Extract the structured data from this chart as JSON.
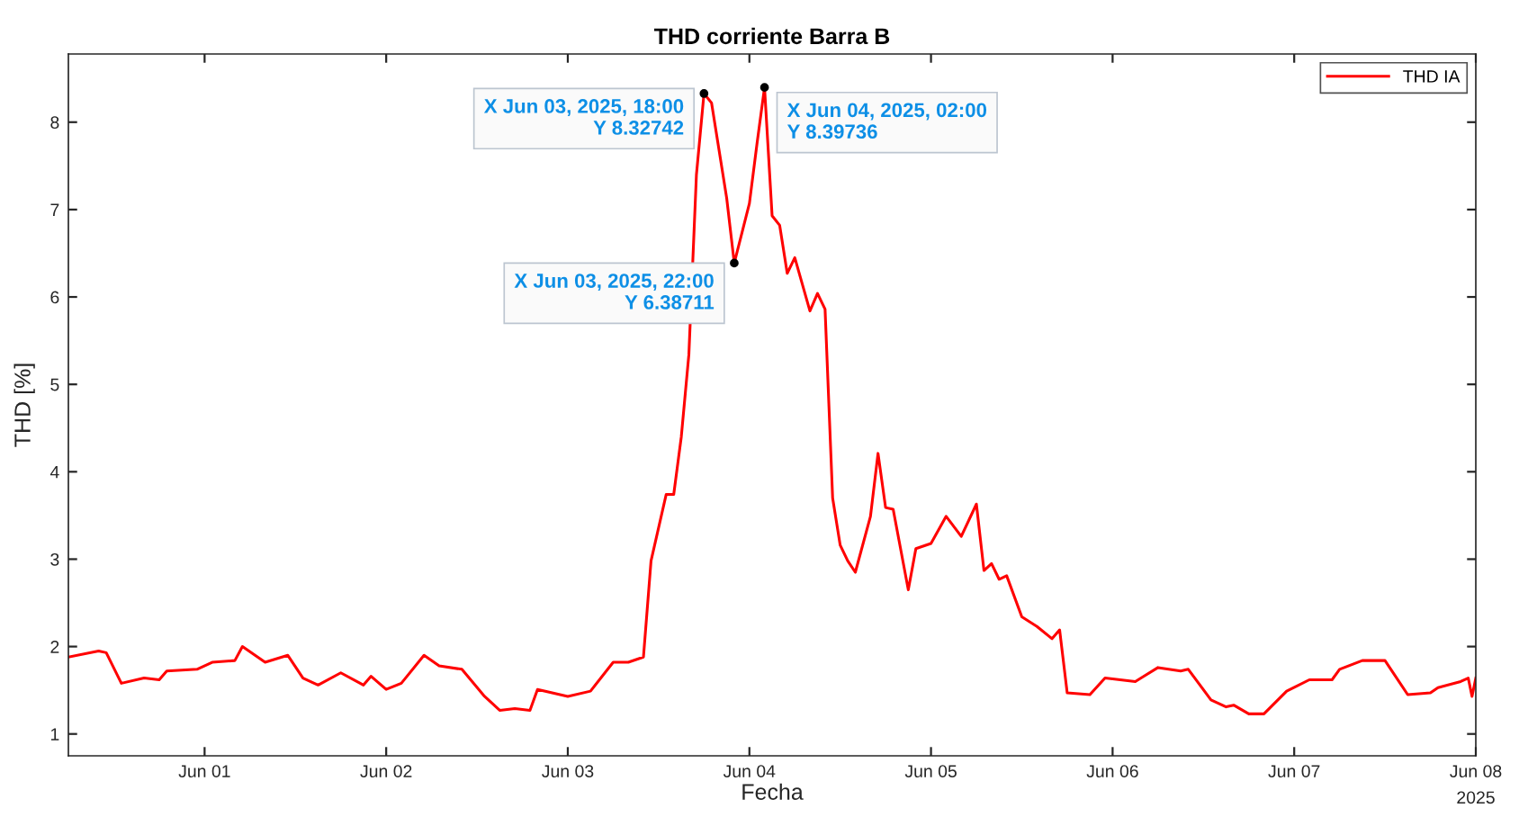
{
  "chart_data": {
    "type": "line",
    "title": "THD corriente Barra B",
    "xlabel": "Fecha",
    "ylabel": "THD [%]",
    "x": [
      "2025-05-31T06:00",
      "2025-05-31T10:00",
      "2025-05-31T11:00",
      "2025-05-31T13:00",
      "2025-05-31T16:00",
      "2025-05-31T18:00",
      "2025-05-31T19:00",
      "2025-05-31T23:00",
      "2025-06-01T01:00",
      "2025-06-01T04:00",
      "2025-06-01T05:00",
      "2025-06-01T08:00",
      "2025-06-01T11:00",
      "2025-06-01T13:00",
      "2025-06-01T15:00",
      "2025-06-01T18:00",
      "2025-06-01T21:00",
      "2025-06-01T22:00",
      "2025-06-02T00:00",
      "2025-06-02T02:00",
      "2025-06-02T05:00",
      "2025-06-02T07:00",
      "2025-06-02T10:00",
      "2025-06-02T13:00",
      "2025-06-02T15:00",
      "2025-06-02T17:00",
      "2025-06-02T19:00",
      "2025-06-02T20:00",
      "2025-06-03T00:00",
      "2025-06-03T03:00",
      "2025-06-03T06:00",
      "2025-06-03T08:00",
      "2025-06-03T10:00",
      "2025-06-03T11:00",
      "2025-06-03T13:00",
      "2025-06-03T14:00",
      "2025-06-03T15:00",
      "2025-06-03T16:00",
      "2025-06-03T17:00",
      "2025-06-03T18:00",
      "2025-06-03T19:00",
      "2025-06-03T21:00",
      "2025-06-03T22:00",
      "2025-06-04T00:00",
      "2025-06-04T01:00",
      "2025-06-04T02:00",
      "2025-06-04T03:00",
      "2025-06-04T04:00",
      "2025-06-04T05:00",
      "2025-06-04T06:00",
      "2025-06-04T08:00",
      "2025-06-04T09:00",
      "2025-06-04T10:00",
      "2025-06-04T11:00",
      "2025-06-04T12:00",
      "2025-06-04T13:00",
      "2025-06-04T14:00",
      "2025-06-04T16:00",
      "2025-06-04T17:00",
      "2025-06-04T18:00",
      "2025-06-04T19:00",
      "2025-06-04T21:00",
      "2025-06-04T22:00",
      "2025-06-05T00:00",
      "2025-06-05T02:00",
      "2025-06-05T04:00",
      "2025-06-05T06:00",
      "2025-06-05T07:00",
      "2025-06-05T08:00",
      "2025-06-05T09:00",
      "2025-06-05T10:00",
      "2025-06-05T12:00",
      "2025-06-05T14:00",
      "2025-06-05T16:00",
      "2025-06-05T17:00",
      "2025-06-05T18:00",
      "2025-06-05T21:00",
      "2025-06-05T23:00",
      "2025-06-06T03:00",
      "2025-06-06T06:00",
      "2025-06-06T09:00",
      "2025-06-06T10:00",
      "2025-06-06T13:00",
      "2025-06-06T15:00",
      "2025-06-06T16:00",
      "2025-06-06T18:00",
      "2025-06-06T20:00",
      "2025-06-06T23:00",
      "2025-06-07T02:00",
      "2025-06-07T05:00",
      "2025-06-07T06:00",
      "2025-06-07T09:00",
      "2025-06-07T12:00",
      "2025-06-07T15:00",
      "2025-06-07T18:00",
      "2025-06-07T19:00",
      "2025-06-07T22:00",
      "2025-06-07T23:00",
      "2025-06-07T23:30",
      "2025-06-08T00:00"
    ],
    "series": [
      {
        "name": "THD IA",
        "color": "#ff0000",
        "values": [
          1.88,
          1.95,
          1.93,
          1.58,
          1.64,
          1.62,
          1.72,
          1.74,
          1.82,
          1.84,
          2.0,
          1.82,
          1.9,
          1.64,
          1.56,
          1.7,
          1.56,
          1.66,
          1.51,
          1.58,
          1.9,
          1.78,
          1.74,
          1.43,
          1.27,
          1.29,
          1.27,
          1.51,
          1.43,
          1.49,
          1.82,
          1.82,
          1.88,
          2.98,
          3.74,
          3.74,
          4.4,
          5.34,
          7.4,
          8.32742,
          8.22,
          7.13,
          6.38711,
          7.07,
          7.75,
          8.39736,
          6.93,
          6.82,
          6.27,
          6.45,
          5.84,
          6.04,
          5.86,
          3.7,
          3.16,
          2.98,
          2.85,
          3.49,
          4.21,
          3.59,
          3.57,
          2.65,
          3.12,
          3.18,
          3.49,
          3.26,
          3.63,
          2.87,
          2.95,
          2.77,
          2.81,
          2.34,
          2.23,
          2.09,
          2.19,
          1.47,
          1.45,
          1.64,
          1.6,
          1.76,
          1.72,
          1.74,
          1.39,
          1.31,
          1.33,
          1.23,
          1.23,
          1.49,
          1.62,
          1.62,
          1.74,
          1.84,
          1.84,
          1.45,
          1.47,
          1.53,
          1.6,
          1.64,
          1.43,
          1.64
        ]
      }
    ],
    "xlim": [
      "2025-05-31T06:00",
      "2025-06-08T00:00"
    ],
    "xticks": [
      {
        "value": "2025-06-01",
        "label": "Jun 01"
      },
      {
        "value": "2025-06-02",
        "label": "Jun 02"
      },
      {
        "value": "2025-06-03",
        "label": "Jun 03"
      },
      {
        "value": "2025-06-04",
        "label": "Jun 04"
      },
      {
        "value": "2025-06-05",
        "label": "Jun 05"
      },
      {
        "value": "2025-06-06",
        "label": "Jun 06"
      },
      {
        "value": "2025-06-07",
        "label": "Jun 07"
      },
      {
        "value": "2025-06-08",
        "label": "Jun 08"
      }
    ],
    "ylim": [
      0.75,
      8.78
    ],
    "yticks": [
      1,
      2,
      3,
      4,
      5,
      6,
      7,
      8
    ],
    "legend": "top right",
    "marker": "none",
    "line_style": "solid",
    "annotations": [
      {
        "text": "X Jun 03, 2025, 18:00\nY 8.32742",
        "x": "2025-06-03T18:00",
        "y": 8.32742
      },
      {
        "text": "X Jun 03, 2025, 22:00\nY 6.38711",
        "x": "2025-06-03T22:00",
        "y": 6.38711
      },
      {
        "text": "X Jun 04, 2025, 02:00\nY 8.39736",
        "x": "2025-06-04T02:00",
        "y": 8.39736
      },
      "2025"
    ]
  }
}
